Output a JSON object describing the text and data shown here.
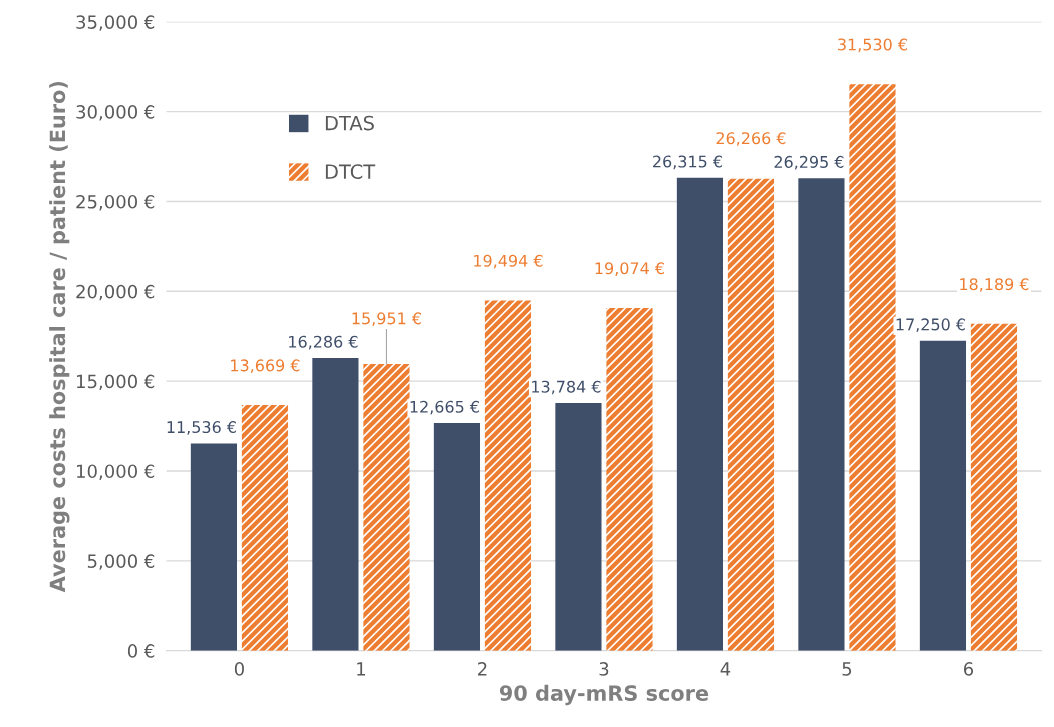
{
  "chart_data": {
    "type": "bar",
    "xlabel": "90 day-mRS score",
    "ylabel": "Average costs hospital care / patient (Euro)",
    "categories": [
      "0",
      "1",
      "2",
      "3",
      "4",
      "5",
      "6"
    ],
    "series": [
      {
        "name": "DTAS",
        "color": "#404f69",
        "values": [
          11536,
          16286,
          12665,
          13784,
          26315,
          26295,
          17250
        ],
        "value_labels": [
          "11,536 €",
          "16,286 €",
          "12,665 €",
          "13,784 €",
          "26,315 €",
          "26,295 €",
          "17,250 €"
        ]
      },
      {
        "name": "DTCT",
        "color": "#ed7d31",
        "values": [
          13669,
          15951,
          19494,
          19074,
          26266,
          31530,
          18189
        ],
        "value_labels": [
          "13,669 €",
          "15,951 €",
          "19,494 €",
          "19,074 €",
          "26,266 €",
          "31,530 €",
          "18,189 €"
        ]
      }
    ],
    "ylim": [
      0,
      35000
    ],
    "yticks": [
      {
        "value": 0,
        "label": "0 €"
      },
      {
        "value": 5000,
        "label": "5,000 €"
      },
      {
        "value": 10000,
        "label": "10,000 €"
      },
      {
        "value": 15000,
        "label": "15,000 €"
      },
      {
        "value": 20000,
        "label": "20,000 €"
      },
      {
        "value": 25000,
        "label": "25,000 €"
      },
      {
        "value": 30000,
        "label": "30,000 €"
      },
      {
        "value": 35000,
        "label": "35,000 €"
      }
    ],
    "grid": "y",
    "legend": "top left"
  }
}
